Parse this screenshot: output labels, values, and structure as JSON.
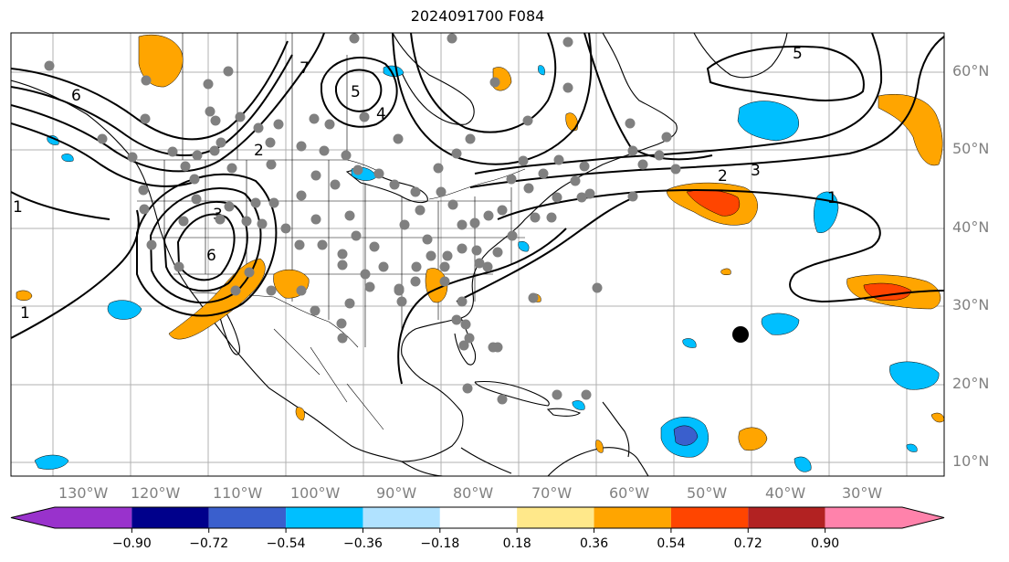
{
  "title": "2024091700 F084",
  "map": {
    "latitude_labels": [
      "60°N",
      "50°N",
      "40°N",
      "30°N",
      "20°N",
      "10°N"
    ],
    "longitude_labels": [
      "130°W",
      "120°W",
      "110°W",
      "100°W",
      "90°W",
      "80°W",
      "70°W",
      "60°W",
      "50°W",
      "40°W",
      "30°W"
    ],
    "contour_labels": [
      "5",
      "4",
      "6",
      "2",
      "3",
      "7",
      "6",
      "5",
      "2",
      "3",
      "1",
      "1",
      "1"
    ],
    "colors": {
      "positive_light": "#ffe88a",
      "positive_mid": "#ffa500",
      "positive_strong": "#ff4500",
      "negative_mid": "#00bfff",
      "negative_strong": "#3a5fcd",
      "observation_dots": "#808080",
      "storm_center": "#000000"
    }
  },
  "colorbar": {
    "tick_labels": [
      "−0.90",
      "−0.72",
      "−0.54",
      "−0.36",
      "−0.18",
      "0.18",
      "0.36",
      "0.54",
      "0.72",
      "0.90"
    ],
    "segment_colors": [
      "#9932cc",
      "#00008b",
      "#3a5fcd",
      "#00bfff",
      "#b0e2ff",
      "#ffffff",
      "#ffe88a",
      "#ffa500",
      "#ff4500",
      "#b22222",
      "#ff82ab"
    ],
    "under_color": "#9932cc",
    "over_color": "#ff82ab"
  }
}
